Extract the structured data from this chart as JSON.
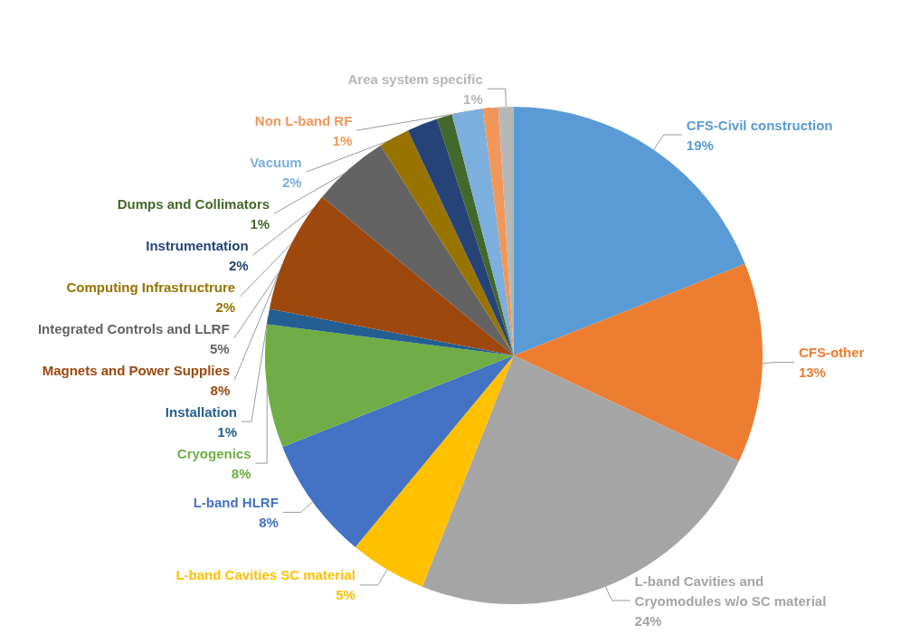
{
  "chart_data": {
    "type": "pie",
    "categories": [
      "CFS-Civil construction",
      "CFS-other",
      "L-band Cavities and Cryomodules w/o SC material",
      "L-band Cavities SC material",
      "L-band HLRF",
      "Cryogenics",
      "Installation",
      "Magnets and Power Supplies",
      "Integrated Controls and LLRF",
      "Computing Infrastructrure",
      "Instrumentation",
      "Dumps and Collimators",
      "Vacuum",
      "Non L-band RF",
      "Area system specific"
    ],
    "values": [
      19,
      13,
      24,
      5,
      8,
      8,
      1,
      8,
      5,
      2,
      2,
      1,
      2,
      1,
      1
    ],
    "value_labels": [
      "19%",
      "13%",
      "24%",
      "5%",
      "8%",
      "8%",
      "1%",
      "8%",
      "5%",
      "2%",
      "2%",
      "1%",
      "2%",
      "1%",
      "1%"
    ],
    "colors": [
      "#5b9bd5",
      "#ed7d31",
      "#a5a5a5",
      "#ffc000",
      "#4472c4",
      "#70ad47",
      "#255e91",
      "#9e480e",
      "#636363",
      "#997300",
      "#264478",
      "#43682b",
      "#7cafdd",
      "#f1975a",
      "#b7b7b7"
    ],
    "legend": false
  }
}
